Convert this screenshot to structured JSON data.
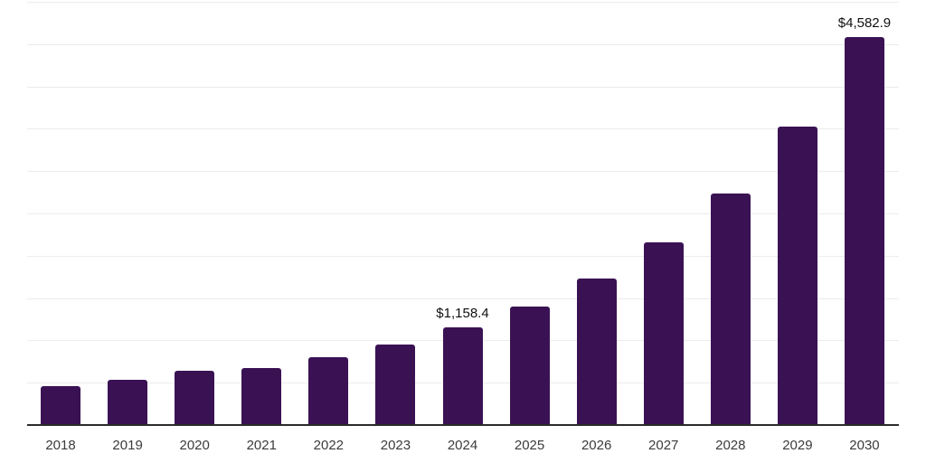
{
  "chart_data": {
    "type": "bar",
    "title": "",
    "xlabel": "",
    "ylabel": "",
    "ylim": [
      0,
      5000
    ],
    "gridline_step": 500,
    "grid": true,
    "legend": false,
    "bar_color": "#3a1254",
    "categories": [
      "2018",
      "2019",
      "2020",
      "2021",
      "2022",
      "2023",
      "2024",
      "2025",
      "2026",
      "2027",
      "2028",
      "2029",
      "2030"
    ],
    "values": [
      455,
      530,
      636,
      670,
      800,
      950,
      1158.4,
      1404,
      1735,
      2156,
      2736,
      3521,
      4582.9
    ],
    "value_labels": {
      "2024": "$1,158.4",
      "2030": "$4,582.9"
    }
  }
}
